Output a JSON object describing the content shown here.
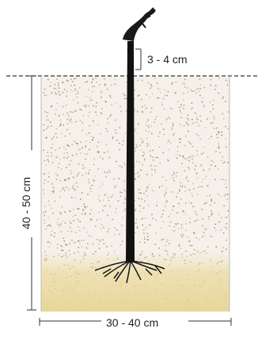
{
  "diagram": {
    "stem_above_ground_label": "3 - 4 cm",
    "depth_label": "40 - 50 cm",
    "width_label": "30 - 40 cm"
  },
  "colors": {
    "soil_speckle": "#8a6a4a",
    "soil_background": "#f4efe8",
    "root_zone": "#e9d9a0",
    "stem": "#111111",
    "guide_lines": "#333333"
  }
}
